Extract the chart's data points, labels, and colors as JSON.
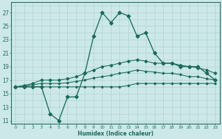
{
  "x": [
    0,
    1,
    2,
    3,
    4,
    5,
    6,
    7,
    8,
    9,
    10,
    11,
    12,
    13,
    14,
    15,
    16,
    17,
    18,
    19,
    20,
    21,
    22,
    23
  ],
  "line_main": [
    16,
    16,
    16,
    16,
    12,
    11,
    14.5,
    14.5,
    18,
    23.5,
    27,
    25.5,
    27,
    26.5,
    23.5,
    24,
    21,
    19.5,
    19.5,
    19,
    19,
    19,
    18,
    17
  ],
  "line2": [
    16,
    16.2,
    16.5,
    17,
    17,
    17,
    17.2,
    17.5,
    18,
    18.5,
    19,
    19.2,
    19.5,
    19.8,
    20,
    19.8,
    19.5,
    19.5,
    19.5,
    19.2,
    19,
    18.8,
    18.5,
    18
  ],
  "line3": [
    16,
    16.1,
    16.3,
    16.5,
    16.5,
    16.5,
    16.6,
    16.8,
    17,
    17.3,
    17.5,
    17.7,
    18,
    18.2,
    18.5,
    18.3,
    18.2,
    18,
    18,
    17.8,
    17.5,
    17.5,
    17.2,
    17
  ],
  "line4": [
    16,
    16,
    16,
    16,
    16,
    16,
    16,
    16,
    16,
    16,
    16,
    16,
    16,
    16.2,
    16.5,
    16.5,
    16.5,
    16.5,
    16.5,
    16.5,
    16.5,
    16.5,
    16.5,
    16.5
  ],
  "color": "#1a6b5a",
  "bg_color": "#cce8e8",
  "grid_color": "#aacccc",
  "xlabel": "Humidex (Indice chaleur)",
  "ylabel_ticks": [
    11,
    13,
    15,
    17,
    19,
    21,
    23,
    25,
    27
  ],
  "xlim": [
    -0.5,
    23.5
  ],
  "ylim": [
    10.5,
    28.5
  ]
}
